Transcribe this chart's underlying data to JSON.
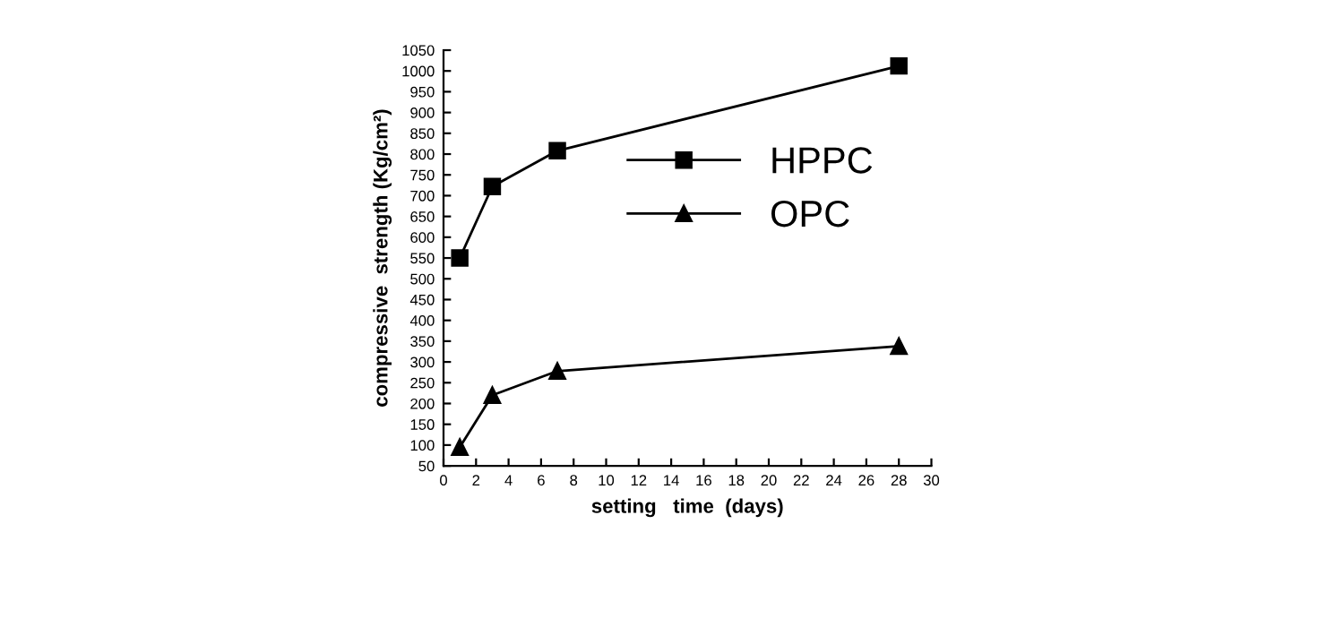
{
  "chart_data": {
    "type": "line",
    "xlabel": "setting   time  (days)",
    "ylabel": "compressive  strength (Kg/cm²)",
    "series": [
      {
        "name": "HPPC",
        "color": "#000000",
        "marker": "square",
        "x": [
          1,
          3,
          7,
          28
        ],
        "values": [
          550,
          722,
          808,
          1012
        ]
      },
      {
        "name": "OPC",
        "color": "#000000",
        "marker": "triangle",
        "x": [
          1,
          3,
          7,
          28
        ],
        "values": [
          95,
          220,
          278,
          338
        ]
      }
    ],
    "xlim": [
      0,
      30
    ],
    "xticks": [
      0,
      2,
      4,
      6,
      8,
      10,
      12,
      14,
      16,
      18,
      20,
      22,
      24,
      26,
      28,
      30
    ],
    "ylim": [
      50,
      1050
    ],
    "yticks": [
      50,
      100,
      150,
      200,
      250,
      300,
      350,
      400,
      450,
      500,
      550,
      600,
      650,
      700,
      750,
      800,
      850,
      900,
      950,
      1000,
      1050
    ],
    "grid": false,
    "legend": "top right",
    "line_style": "solid"
  }
}
